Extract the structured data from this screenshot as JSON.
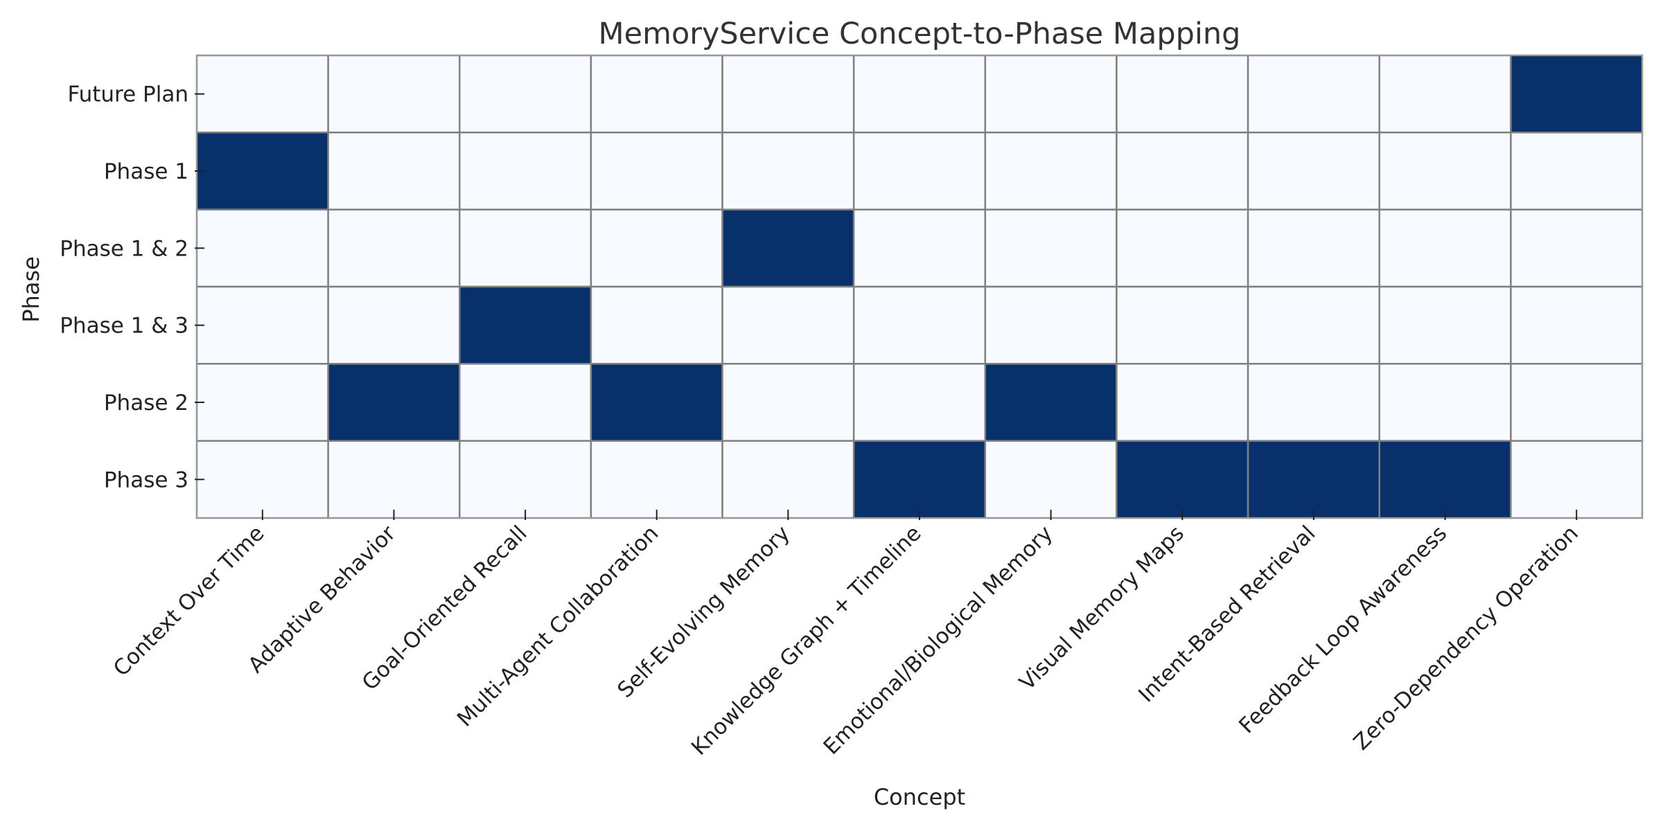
{
  "chart_data": {
    "type": "heatmap",
    "title": "MemoryService Concept-to-Phase Mapping",
    "xlabel": "Concept",
    "ylabel": "Phase",
    "x_categories": [
      "Context Over Time",
      "Adaptive Behavior",
      "Goal-Oriented Recall",
      "Multi-Agent Collaboration",
      "Self-Evolving Memory",
      "Knowledge Graph + Timeline",
      "Emotional/Biological Memory",
      "Visual Memory Maps",
      "Intent-Based Retrieval",
      "Feedback Loop Awareness",
      "Zero-Dependency Operation"
    ],
    "y_categories": [
      "Future Plan",
      "Phase 1",
      "Phase 1 & 2",
      "Phase 1 & 3",
      "Phase 2",
      "Phase 3"
    ],
    "values": [
      [
        0,
        0,
        0,
        0,
        0,
        0,
        0,
        0,
        0,
        0,
        1
      ],
      [
        1,
        0,
        0,
        0,
        0,
        0,
        0,
        0,
        0,
        0,
        0
      ],
      [
        0,
        0,
        0,
        0,
        1,
        0,
        0,
        0,
        0,
        0,
        0
      ],
      [
        0,
        0,
        1,
        0,
        0,
        0,
        0,
        0,
        0,
        0,
        0
      ],
      [
        0,
        1,
        0,
        1,
        0,
        0,
        1,
        0,
        0,
        0,
        0
      ],
      [
        0,
        0,
        0,
        0,
        0,
        1,
        0,
        1,
        1,
        1,
        0
      ]
    ],
    "colorbar": false,
    "grid": false,
    "colors": {
      "filled": "#08306b",
      "empty": "#f7fbff",
      "cell_border": "#808080",
      "frame": "#999999",
      "text": "#222222",
      "title": "#333333"
    }
  }
}
